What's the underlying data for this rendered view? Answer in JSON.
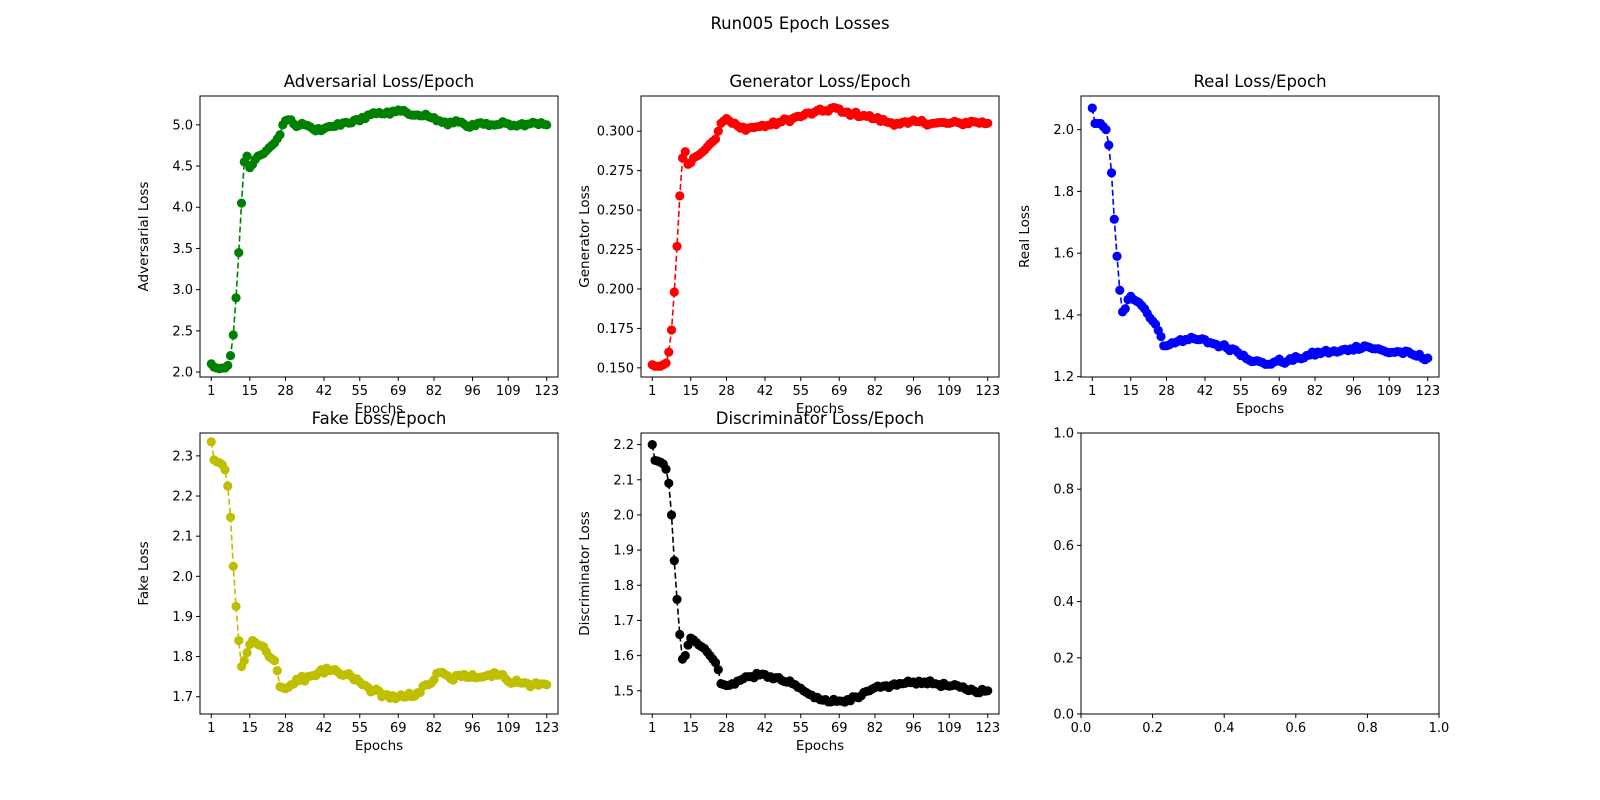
{
  "figure_title": "Run005 Epoch Losses",
  "chart_data": [
    {
      "type": "line",
      "title": "Adversarial Loss/Epoch",
      "xlabel": "Epochs",
      "ylabel": "Adversarial Loss",
      "color": "#008000",
      "linestyle": "dashed",
      "marker": "circle",
      "xlim": [
        -3.1,
        127.1
      ],
      "ylim": [
        1.94,
        5.35
      ],
      "xticks": [
        1,
        15,
        28,
        42,
        55,
        69,
        82,
        96,
        109,
        123
      ],
      "xtick_labels": [
        "1",
        "15",
        "28",
        "42",
        "55",
        "69",
        "82",
        "96",
        "109",
        "123"
      ],
      "yticks": [
        2.0,
        2.5,
        3.0,
        3.5,
        4.0,
        4.5,
        5.0
      ],
      "ytick_labels": [
        "2.0",
        "2.5",
        "3.0",
        "3.5",
        "4.0",
        "4.5",
        "5.0"
      ],
      "anchors": [
        [
          1,
          2.1
        ],
        [
          2,
          2.06
        ],
        [
          3,
          2.05
        ],
        [
          4,
          2.04
        ],
        [
          5,
          2.05
        ],
        [
          6,
          2.05
        ],
        [
          7,
          2.08
        ],
        [
          8,
          2.2
        ],
        [
          9,
          2.45
        ],
        [
          10,
          2.9
        ],
        [
          11,
          3.45
        ],
        [
          12,
          4.05
        ],
        [
          13,
          4.55
        ],
        [
          14,
          4.62
        ],
        [
          15,
          4.48
        ],
        [
          16,
          4.52
        ],
        [
          17,
          4.58
        ],
        [
          18,
          4.62
        ],
        [
          20,
          4.65
        ],
        [
          22,
          4.72
        ],
        [
          24,
          4.78
        ],
        [
          26,
          4.88
        ],
        [
          27,
          5.0
        ],
        [
          28,
          5.05
        ],
        [
          30,
          5.06
        ],
        [
          32,
          4.98
        ],
        [
          35,
          5.0
        ],
        [
          38,
          4.95
        ],
        [
          41,
          4.93
        ],
        [
          45,
          4.98
        ],
        [
          50,
          5.03
        ],
        [
          55,
          5.05
        ],
        [
          58,
          5.12
        ],
        [
          62,
          5.15
        ],
        [
          66,
          5.13
        ],
        [
          69,
          5.18
        ],
        [
          72,
          5.15
        ],
        [
          76,
          5.12
        ],
        [
          80,
          5.1
        ],
        [
          84,
          5.05
        ],
        [
          87,
          5.0
        ],
        [
          90,
          5.05
        ],
        [
          94,
          4.98
        ],
        [
          98,
          5.02
        ],
        [
          103,
          5.0
        ],
        [
          108,
          5.02
        ],
        [
          113,
          5.0
        ],
        [
          118,
          5.03
        ],
        [
          123,
          5.0
        ]
      ],
      "noise": 0.025
    },
    {
      "type": "line",
      "title": "Generator Loss/Epoch",
      "xlabel": "Epochs",
      "ylabel": "Generator Loss",
      "color": "#ff0000",
      "linestyle": "dashed",
      "marker": "circle",
      "xlim": [
        -3.1,
        127.1
      ],
      "ylim": [
        0.1442,
        0.3223
      ],
      "xticks": [
        1,
        15,
        28,
        42,
        55,
        69,
        82,
        96,
        109,
        123
      ],
      "xtick_labels": [
        "1",
        "15",
        "28",
        "42",
        "55",
        "69",
        "82",
        "96",
        "109",
        "123"
      ],
      "yticks": [
        0.15,
        0.175,
        0.2,
        0.225,
        0.25,
        0.275,
        0.3
      ],
      "ytick_labels": [
        "0.150",
        "0.175",
        "0.200",
        "0.225",
        "0.250",
        "0.275",
        "0.300"
      ],
      "anchors": [
        [
          1,
          0.152
        ],
        [
          2,
          0.151
        ],
        [
          3,
          0.151
        ],
        [
          4,
          0.151
        ],
        [
          5,
          0.152
        ],
        [
          6,
          0.153
        ],
        [
          7,
          0.16
        ],
        [
          8,
          0.174
        ],
        [
          9,
          0.198
        ],
        [
          10,
          0.227
        ],
        [
          11,
          0.259
        ],
        [
          12,
          0.283
        ],
        [
          13,
          0.287
        ],
        [
          14,
          0.279
        ],
        [
          15,
          0.28
        ],
        [
          16,
          0.283
        ],
        [
          18,
          0.285
        ],
        [
          20,
          0.288
        ],
        [
          22,
          0.292
        ],
        [
          24,
          0.295
        ],
        [
          25,
          0.3
        ],
        [
          26,
          0.305
        ],
        [
          28,
          0.308
        ],
        [
          30,
          0.305
        ],
        [
          33,
          0.302
        ],
        [
          36,
          0.302
        ],
        [
          40,
          0.303
        ],
        [
          44,
          0.304
        ],
        [
          48,
          0.306
        ],
        [
          52,
          0.308
        ],
        [
          56,
          0.31
        ],
        [
          60,
          0.312
        ],
        [
          64,
          0.313
        ],
        [
          67,
          0.315
        ],
        [
          70,
          0.312
        ],
        [
          74,
          0.311
        ],
        [
          78,
          0.31
        ],
        [
          82,
          0.308
        ],
        [
          86,
          0.306
        ],
        [
          90,
          0.305
        ],
        [
          94,
          0.305
        ],
        [
          98,
          0.306
        ],
        [
          103,
          0.305
        ],
        [
          108,
          0.305
        ],
        [
          113,
          0.305
        ],
        [
          118,
          0.306
        ],
        [
          123,
          0.305
        ]
      ],
      "noise": 0.0015
    },
    {
      "type": "line",
      "title": "Real Loss/Epoch",
      "xlabel": "Epochs",
      "ylabel": "Real Loss",
      "color": "#0000ff",
      "linestyle": "dashed",
      "marker": "circle",
      "xlim": [
        -3.1,
        127.1
      ],
      "ylim": [
        1.199,
        2.109
      ],
      "xticks": [
        1,
        15,
        28,
        42,
        55,
        69,
        82,
        96,
        109,
        123
      ],
      "xtick_labels": [
        "1",
        "15",
        "28",
        "42",
        "55",
        "69",
        "82",
        "96",
        "109",
        "123"
      ],
      "yticks": [
        1.2,
        1.4,
        1.6,
        1.8,
        2.0
      ],
      "ytick_labels": [
        "1.2",
        "1.4",
        "1.6",
        "1.8",
        "2.0"
      ],
      "anchors": [
        [
          1,
          2.07
        ],
        [
          2,
          2.02
        ],
        [
          3,
          2.02
        ],
        [
          4,
          2.02
        ],
        [
          5,
          2.01
        ],
        [
          6,
          2.0
        ],
        [
          7,
          1.95
        ],
        [
          8,
          1.86
        ],
        [
          9,
          1.71
        ],
        [
          10,
          1.59
        ],
        [
          11,
          1.48
        ],
        [
          12,
          1.41
        ],
        [
          13,
          1.42
        ],
        [
          14,
          1.45
        ],
        [
          15,
          1.46
        ],
        [
          16,
          1.45
        ],
        [
          18,
          1.44
        ],
        [
          20,
          1.42
        ],
        [
          22,
          1.39
        ],
        [
          24,
          1.37
        ],
        [
          26,
          1.33
        ],
        [
          27,
          1.3
        ],
        [
          28,
          1.3
        ],
        [
          30,
          1.31
        ],
        [
          33,
          1.32
        ],
        [
          36,
          1.32
        ],
        [
          40,
          1.32
        ],
        [
          44,
          1.31
        ],
        [
          48,
          1.3
        ],
        [
          52,
          1.29
        ],
        [
          56,
          1.27
        ],
        [
          60,
          1.25
        ],
        [
          64,
          1.24
        ],
        [
          68,
          1.25
        ],
        [
          72,
          1.25
        ],
        [
          76,
          1.26
        ],
        [
          80,
          1.27
        ],
        [
          85,
          1.28
        ],
        [
          90,
          1.28
        ],
        [
          95,
          1.29
        ],
        [
          100,
          1.3
        ],
        [
          104,
          1.29
        ],
        [
          108,
          1.28
        ],
        [
          113,
          1.28
        ],
        [
          118,
          1.27
        ],
        [
          123,
          1.26
        ]
      ],
      "noise": 0.008
    },
    {
      "type": "line",
      "title": "Fake Loss/Epoch",
      "xlabel": "Epochs",
      "ylabel": "Fake Loss",
      "color": "#bfbf00",
      "linestyle": "dashed",
      "marker": "circle",
      "xlim": [
        -3.1,
        127.1
      ],
      "ylim": [
        1.657,
        2.357
      ],
      "xticks": [
        1,
        15,
        28,
        42,
        55,
        69,
        82,
        96,
        109,
        123
      ],
      "xtick_labels": [
        "1",
        "15",
        "28",
        "42",
        "55",
        "69",
        "82",
        "96",
        "109",
        "123"
      ],
      "yticks": [
        1.7,
        1.8,
        1.9,
        2.0,
        2.1,
        2.2,
        2.3
      ],
      "ytick_labels": [
        "1.7",
        "1.8",
        "1.9",
        "2.0",
        "2.1",
        "2.2",
        "2.3"
      ],
      "anchors": [
        [
          1,
          2.335
        ],
        [
          2,
          2.29
        ],
        [
          3,
          2.285
        ],
        [
          4,
          2.283
        ],
        [
          5,
          2.278
        ],
        [
          6,
          2.265
        ],
        [
          7,
          2.225
        ],
        [
          8,
          2.147
        ],
        [
          9,
          2.025
        ],
        [
          10,
          1.925
        ],
        [
          11,
          1.84
        ],
        [
          12,
          1.775
        ],
        [
          13,
          1.79
        ],
        [
          14,
          1.81
        ],
        [
          15,
          1.83
        ],
        [
          16,
          1.84
        ],
        [
          18,
          1.83
        ],
        [
          20,
          1.825
        ],
        [
          22,
          1.8
        ],
        [
          24,
          1.79
        ],
        [
          25,
          1.765
        ],
        [
          26,
          1.725
        ],
        [
          28,
          1.72
        ],
        [
          30,
          1.73
        ],
        [
          33,
          1.74
        ],
        [
          36,
          1.75
        ],
        [
          40,
          1.76
        ],
        [
          44,
          1.765
        ],
        [
          48,
          1.755
        ],
        [
          52,
          1.75
        ],
        [
          56,
          1.73
        ],
        [
          60,
          1.715
        ],
        [
          64,
          1.705
        ],
        [
          68,
          1.695
        ],
        [
          72,
          1.7
        ],
        [
          76,
          1.71
        ],
        [
          80,
          1.73
        ],
        [
          84,
          1.76
        ],
        [
          88,
          1.745
        ],
        [
          92,
          1.75
        ],
        [
          96,
          1.755
        ],
        [
          100,
          1.75
        ],
        [
          104,
          1.76
        ],
        [
          108,
          1.745
        ],
        [
          113,
          1.735
        ],
        [
          118,
          1.73
        ],
        [
          123,
          1.73
        ]
      ],
      "noise": 0.008
    },
    {
      "type": "line",
      "title": "Discriminator Loss/Epoch",
      "xlabel": "Epochs",
      "ylabel": "Discriminator Loss",
      "color": "#000000",
      "linestyle": "dashed",
      "marker": "circle",
      "xlim": [
        -3.1,
        127.1
      ],
      "ylim": [
        1.434,
        2.233
      ],
      "xticks": [
        1,
        15,
        28,
        42,
        55,
        69,
        82,
        96,
        109,
        123
      ],
      "xtick_labels": [
        "1",
        "15",
        "28",
        "42",
        "55",
        "69",
        "82",
        "96",
        "109",
        "123"
      ],
      "yticks": [
        1.5,
        1.6,
        1.7,
        1.8,
        1.9,
        2.0,
        2.1,
        2.2
      ],
      "ytick_labels": [
        "1.5",
        "1.6",
        "1.7",
        "1.8",
        "1.9",
        "2.0",
        "2.1",
        "2.2"
      ],
      "anchors": [
        [
          1,
          2.2
        ],
        [
          2,
          2.155
        ],
        [
          3,
          2.153
        ],
        [
          4,
          2.15
        ],
        [
          5,
          2.145
        ],
        [
          6,
          2.13
        ],
        [
          7,
          2.09
        ],
        [
          8,
          2.0
        ],
        [
          9,
          1.87
        ],
        [
          10,
          1.76
        ],
        [
          11,
          1.66
        ],
        [
          12,
          1.59
        ],
        [
          13,
          1.6
        ],
        [
          14,
          1.63
        ],
        [
          15,
          1.65
        ],
        [
          16,
          1.645
        ],
        [
          18,
          1.63
        ],
        [
          20,
          1.62
        ],
        [
          22,
          1.6
        ],
        [
          24,
          1.58
        ],
        [
          25,
          1.56
        ],
        [
          26,
          1.52
        ],
        [
          28,
          1.515
        ],
        [
          30,
          1.52
        ],
        [
          33,
          1.53
        ],
        [
          36,
          1.54
        ],
        [
          40,
          1.545
        ],
        [
          44,
          1.54
        ],
        [
          48,
          1.53
        ],
        [
          52,
          1.52
        ],
        [
          56,
          1.5
        ],
        [
          60,
          1.48
        ],
        [
          64,
          1.475
        ],
        [
          68,
          1.47
        ],
        [
          72,
          1.475
        ],
        [
          76,
          1.48
        ],
        [
          80,
          1.5
        ],
        [
          84,
          1.51
        ],
        [
          88,
          1.515
        ],
        [
          92,
          1.52
        ],
        [
          96,
          1.525
        ],
        [
          100,
          1.525
        ],
        [
          104,
          1.52
        ],
        [
          108,
          1.515
        ],
        [
          113,
          1.51
        ],
        [
          118,
          1.5
        ],
        [
          123,
          1.5
        ]
      ],
      "noise": 0.006
    },
    {
      "type": "line",
      "title": "",
      "xlabel": "",
      "ylabel": "",
      "xlim": [
        0,
        1
      ],
      "ylim": [
        0,
        1
      ],
      "xticks": [
        0,
        0.2,
        0.4,
        0.6,
        0.8,
        1.0
      ],
      "xtick_labels": [
        "0.0",
        "0.2",
        "0.4",
        "0.6",
        "0.8",
        "1.0"
      ],
      "yticks": [
        0,
        0.2,
        0.4,
        0.6,
        0.8,
        1.0
      ],
      "ytick_labels": [
        "0.0",
        "0.2",
        "0.4",
        "0.6",
        "0.8",
        "1.0"
      ],
      "anchors": [],
      "empty": true
    }
  ]
}
